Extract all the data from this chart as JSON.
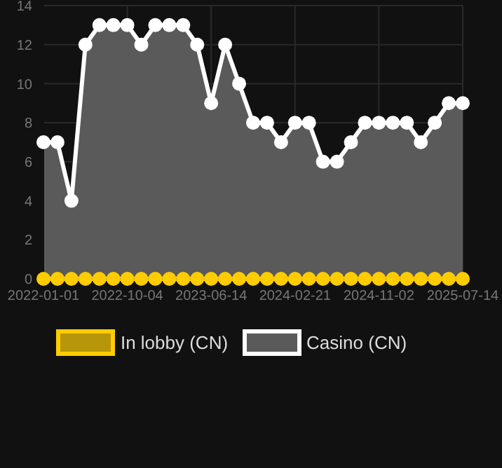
{
  "chart_data": {
    "type": "line",
    "categories": [
      "2022-01-01",
      null,
      null,
      null,
      null,
      null,
      "2022-10-04",
      null,
      null,
      null,
      null,
      null,
      "2023-06-14",
      null,
      null,
      null,
      null,
      null,
      "2024-02-21",
      null,
      null,
      null,
      null,
      null,
      "2024-11-02",
      null,
      null,
      null,
      null,
      null,
      "2025-07-14"
    ],
    "series": [
      {
        "name": "In lobby (CN)",
        "color": "#ffcc00",
        "values": [
          0,
          0,
          0,
          0,
          0,
          0,
          0,
          0,
          0,
          0,
          0,
          0,
          0,
          0,
          0,
          0,
          0,
          0,
          0,
          0,
          0,
          0,
          0,
          0,
          0,
          0,
          0,
          0,
          0,
          0,
          0
        ]
      },
      {
        "name": "Casino (CN)",
        "color": "#ffffff",
        "type": "area",
        "values": [
          7,
          7,
          4,
          12,
          13,
          13,
          13,
          12,
          13,
          13,
          13,
          12,
          9,
          12,
          10,
          8,
          8,
          7,
          8,
          8,
          6,
          6,
          7,
          8,
          8,
          8,
          8,
          7,
          8,
          9,
          9
        ]
      }
    ],
    "ylim": [
      0,
      14
    ],
    "yticks": [
      0,
      2,
      4,
      6,
      8,
      10,
      12,
      14
    ],
    "grid": true,
    "legend": "bottom",
    "marker": "circle"
  }
}
